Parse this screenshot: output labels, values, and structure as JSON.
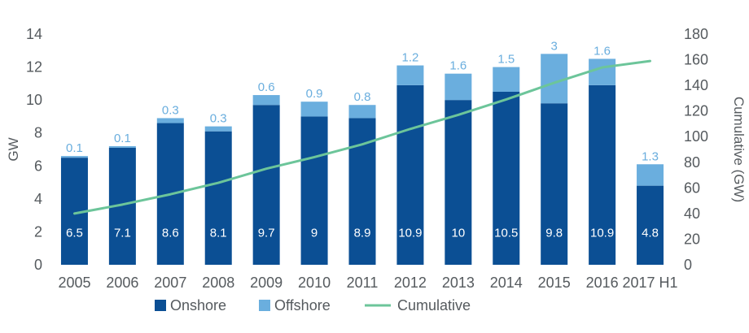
{
  "chart_data": {
    "type": "bar",
    "stacked": true,
    "categories": [
      "2005",
      "2006",
      "2007",
      "2008",
      "2009",
      "2010",
      "2011",
      "2012",
      "2013",
      "2014",
      "2015",
      "2016",
      "2017 H1"
    ],
    "series": [
      {
        "name": "Onshore",
        "kind": "bar",
        "axis": "left",
        "color": "#0b4f94",
        "values": [
          6.5,
          7.1,
          8.6,
          8.1,
          9.7,
          9,
          8.9,
          10.9,
          10,
          10.5,
          9.8,
          10.9,
          4.8
        ],
        "labels": [
          "6.5",
          "7.1",
          "8.6",
          "8.1",
          "9.7",
          "9",
          "8.9",
          "10.9",
          "10",
          "10.5",
          "9.8",
          "10.9",
          "4.8"
        ]
      },
      {
        "name": "Offshore",
        "kind": "bar",
        "axis": "left",
        "color": "#6aaede",
        "values": [
          0.1,
          0.1,
          0.3,
          0.3,
          0.6,
          0.9,
          0.8,
          1.2,
          1.6,
          1.5,
          3,
          1.6,
          1.3
        ],
        "labels": [
          "0.1",
          "0.1",
          "0.3",
          "0.3",
          "0.6",
          "0.9",
          "0.8",
          "1.2",
          "1.6",
          "1.5",
          "3",
          "1.6",
          "1.3"
        ]
      },
      {
        "name": "Cumulative",
        "kind": "line",
        "axis": "right",
        "color": "#6cc59a",
        "values": [
          40,
          47,
          55,
          64,
          75,
          84,
          94,
          106,
          117,
          129,
          142,
          154,
          159
        ]
      }
    ],
    "ylabel": "GW",
    "y2label": "Cumulative (GW)",
    "ylim": [
      0,
      14
    ],
    "y2lim": [
      0,
      180
    ],
    "yticks": [
      "0",
      "2",
      "4",
      "6",
      "8",
      "10",
      "12",
      "14"
    ],
    "y2ticks": [
      "0",
      "20",
      "40",
      "60",
      "80",
      "100",
      "120",
      "140",
      "160",
      "180"
    ],
    "grid": false,
    "legend": "bottom"
  }
}
